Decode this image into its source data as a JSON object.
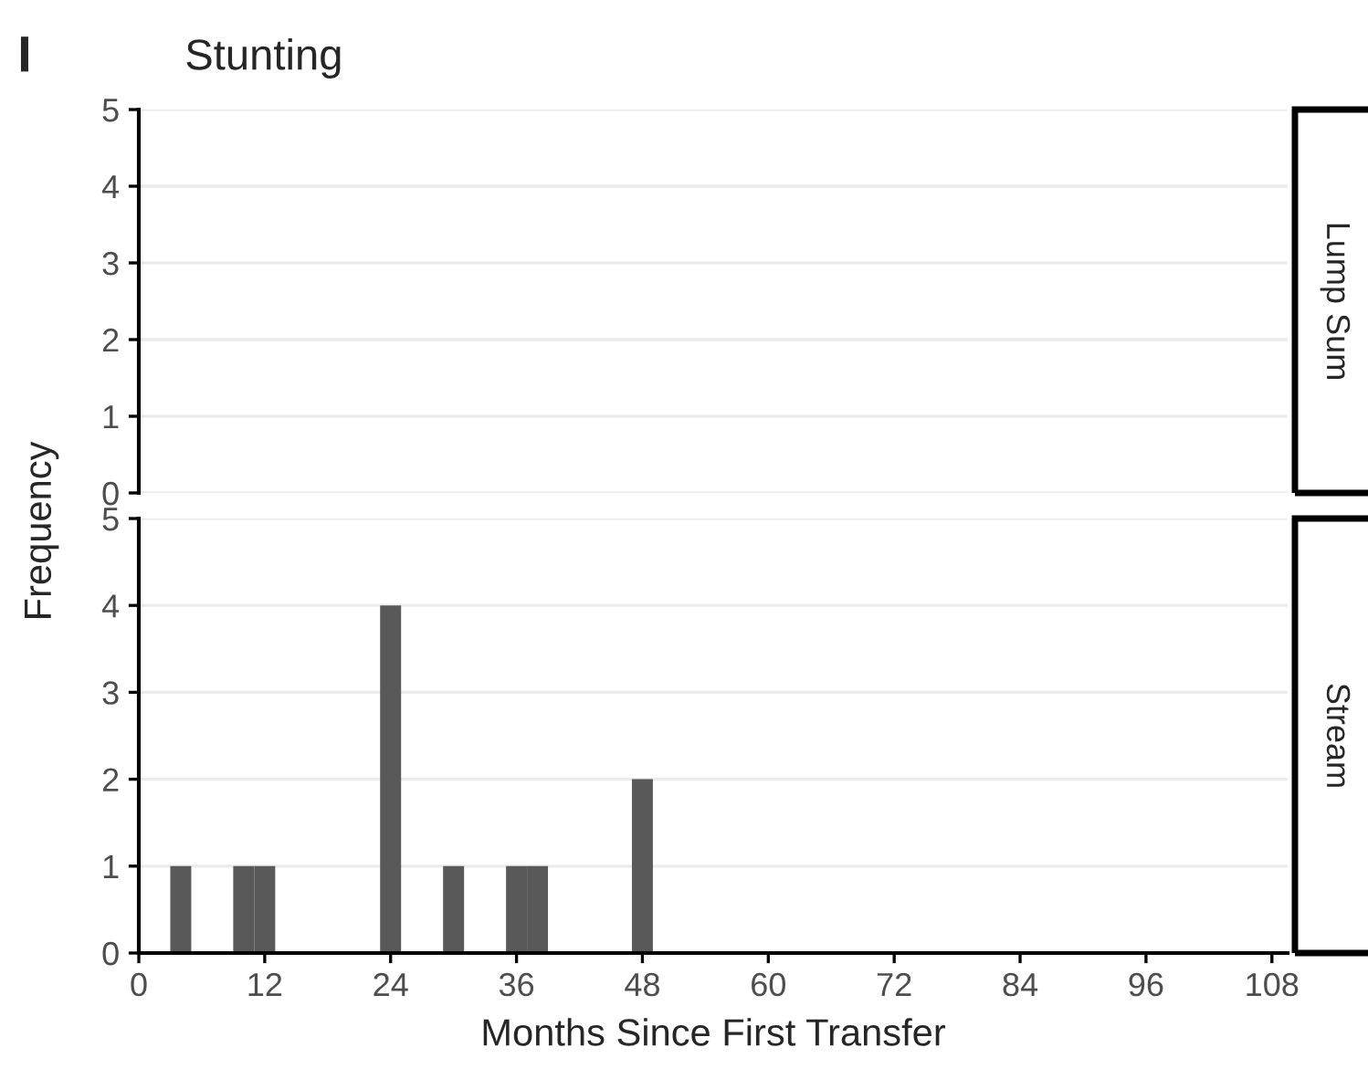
{
  "chart_data": [
    {
      "type": "histogram",
      "title": "Stunting",
      "ylabel": "Frequency",
      "annotations": [
        "I",
        "Lump Sum"
      ],
      "xlim": [
        0,
        109.5
      ],
      "ylim": [
        0,
        5
      ],
      "yticks": [
        0,
        1,
        2,
        3,
        4,
        5
      ],
      "tick_labels": "y",
      "grid": "y"
    },
    {
      "type": "histogram",
      "xlabel": "Months Since First Transfer",
      "annotations": [
        "Stream"
      ],
      "bins": [
        3,
        5,
        7,
        9,
        11,
        13,
        15,
        17,
        19,
        21,
        23,
        25,
        27,
        29,
        31,
        33,
        35,
        37,
        39,
        41,
        43,
        45,
        47,
        49
      ],
      "values": [
        1,
        0,
        0,
        1,
        1,
        0,
        0,
        0,
        0,
        0,
        4,
        0,
        0,
        1,
        0,
        0,
        1,
        1,
        0,
        0,
        0,
        0,
        2
      ],
      "color": "#595959",
      "xlim": [
        0,
        109.5
      ],
      "ylim": [
        0,
        5
      ],
      "xticks": [
        0,
        12,
        24,
        36,
        48,
        60,
        72,
        84,
        96,
        108
      ],
      "yticks": [
        0,
        1,
        2,
        3,
        4,
        5
      ],
      "grid": "y"
    }
  ]
}
